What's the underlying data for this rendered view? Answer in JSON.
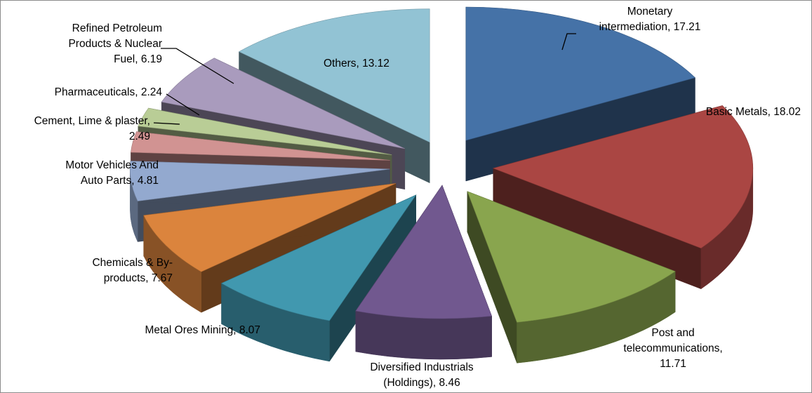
{
  "chart_data": {
    "type": "pie",
    "title": "",
    "slices": [
      {
        "label": "Monetary intermediation",
        "value": 17.21,
        "color": "#4572a7",
        "label_lines": [
          "Monetary",
          "intermediation, 17.21"
        ]
      },
      {
        "label": "Basic Metals",
        "value": 18.02,
        "color": "#aa4643",
        "label_lines": [
          "Basic Metals, 18.02"
        ]
      },
      {
        "label": "Post and telecommunications",
        "value": 11.71,
        "color": "#89a54e",
        "label_lines": [
          "Post and",
          "telecommunications,",
          "11.71"
        ]
      },
      {
        "label": "Diversified Industrials (Holdings)",
        "value": 8.46,
        "color": "#71588f",
        "label_lines": [
          "Diversified Industrials",
          "(Holdings), 8.46"
        ]
      },
      {
        "label": "Metal Ores Mining",
        "value": 8.07,
        "color": "#4198af",
        "label_lines": [
          "Metal Ores Mining, 8.07"
        ]
      },
      {
        "label": "Chemicals & By-products",
        "value": 7.67,
        "color": "#db843d",
        "label_lines": [
          "Chemicals & By-",
          "products, 7.67"
        ]
      },
      {
        "label": "Motor Vehicles And Auto Parts",
        "value": 4.81,
        "color": "#93a9cf",
        "label_lines": [
          "Motor Vehicles And",
          "Auto Parts, 4.81"
        ]
      },
      {
        "label": "Cement, Lime & plaster",
        "value": 2.49,
        "color": "#d19392",
        "label_lines": [
          "Cement, Lime & plaster,",
          "2.49"
        ]
      },
      {
        "label": "Pharmaceuticals",
        "value": 2.24,
        "color": "#b9cd96",
        "label_lines": [
          "Pharmaceuticals, 2.24"
        ]
      },
      {
        "label": "Refined Petroleum Products & Nuclear Fuel",
        "value": 6.19,
        "color": "#a99bbd",
        "label_lines": [
          "Refined Petroleum",
          "Products & Nuclear",
          "Fuel, 6.19"
        ]
      },
      {
        "label": "Others",
        "value": 13.12,
        "color": "#92c3d4",
        "label_lines": [
          "Others, 13.12"
        ]
      }
    ],
    "start_angle": "top",
    "direction": "clockwise",
    "style": "3d-exploded",
    "legend": "none"
  }
}
